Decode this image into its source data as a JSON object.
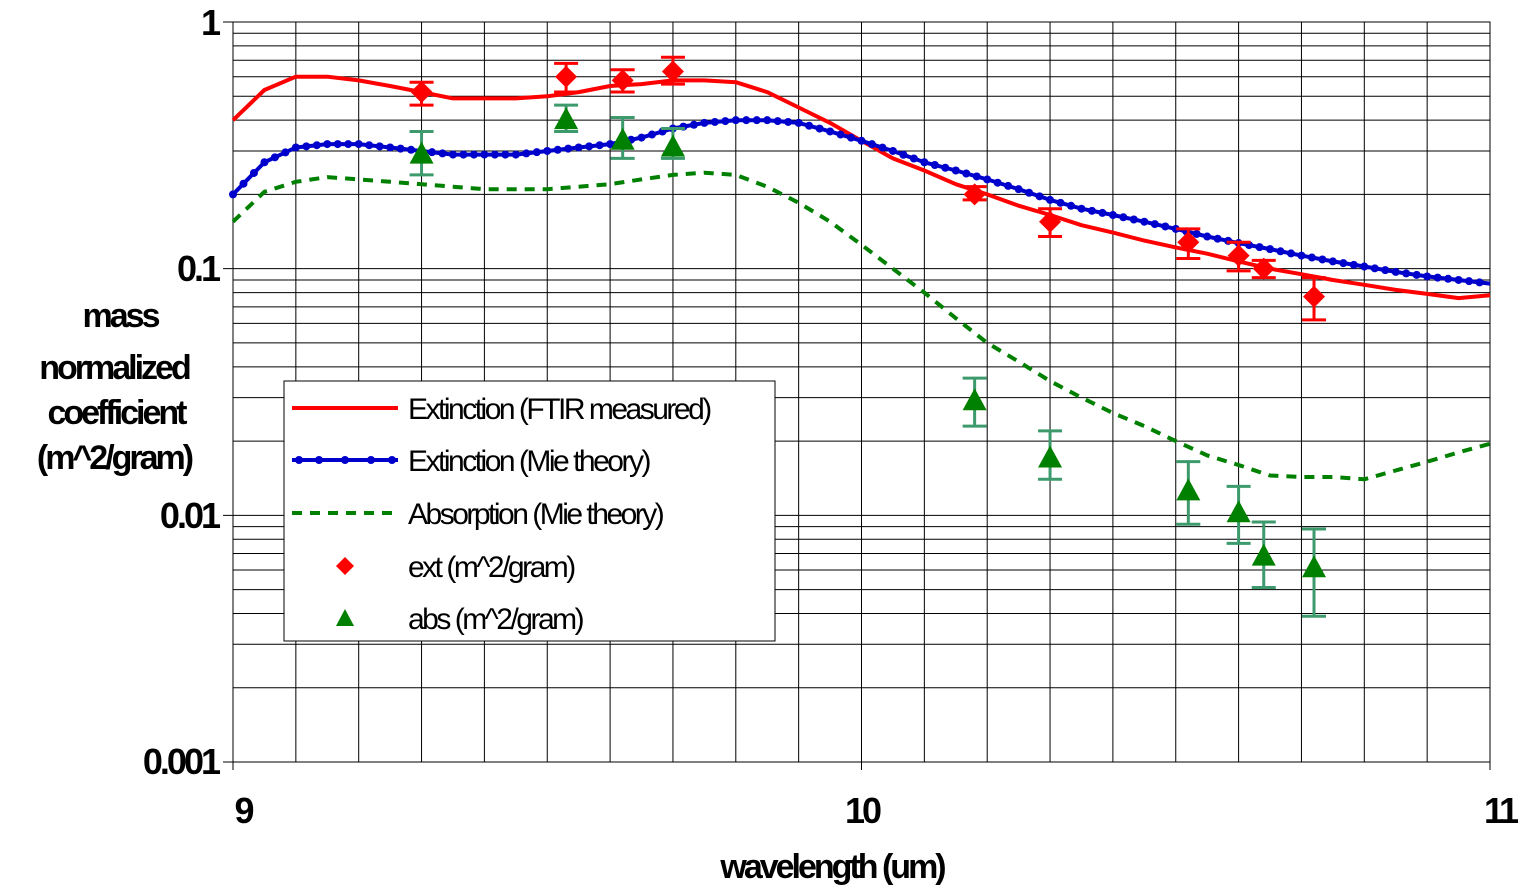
{
  "chart_data": {
    "type": "line",
    "xlabel": "wavelength (um)",
    "ylabel": [
      "mass",
      "normalized",
      "coefficient",
      "(m^2/gram)"
    ],
    "x_ticks": [
      "9",
      "10",
      "11"
    ],
    "y_ticks": [
      "1",
      "0.1",
      "0.01",
      "0.001"
    ],
    "xlim": [
      9,
      11
    ],
    "ylim": [
      0.001,
      1
    ],
    "y_scale": "log",
    "grid": true,
    "legend_position": "left-middle",
    "series": [
      {
        "name": "Extinction (FTIR measured)",
        "style": "solid",
        "color": "#ff0000",
        "x": [
          9.0,
          9.05,
          9.1,
          9.15,
          9.2,
          9.25,
          9.3,
          9.35,
          9.4,
          9.45,
          9.5,
          9.55,
          9.6,
          9.65,
          9.7,
          9.75,
          9.8,
          9.85,
          9.9,
          9.95,
          10.0,
          10.05,
          10.1,
          10.15,
          10.2,
          10.25,
          10.3,
          10.35,
          10.4,
          10.45,
          10.5,
          10.55,
          10.6,
          10.65,
          10.7,
          10.75,
          10.8,
          10.85,
          10.9,
          10.95,
          11.0
        ],
        "y": [
          0.4,
          0.53,
          0.6,
          0.6,
          0.58,
          0.55,
          0.52,
          0.49,
          0.49,
          0.49,
          0.5,
          0.52,
          0.55,
          0.56,
          0.58,
          0.58,
          0.57,
          0.52,
          0.45,
          0.39,
          0.33,
          0.28,
          0.25,
          0.22,
          0.2,
          0.18,
          0.165,
          0.15,
          0.14,
          0.13,
          0.122,
          0.115,
          0.107,
          0.1,
          0.095,
          0.09,
          0.086,
          0.082,
          0.079,
          0.076,
          0.078
        ]
      },
      {
        "name": "Extinction (Mie theory)",
        "style": "dotted-line",
        "color": "#0000cc",
        "x": [
          9.0,
          9.05,
          9.1,
          9.15,
          9.2,
          9.25,
          9.3,
          9.35,
          9.4,
          9.45,
          9.5,
          9.55,
          9.6,
          9.65,
          9.7,
          9.75,
          9.8,
          9.85,
          9.9,
          9.95,
          10.0,
          10.05,
          10.1,
          10.15,
          10.2,
          10.25,
          10.3,
          10.35,
          10.4,
          10.45,
          10.5,
          10.55,
          10.6,
          10.65,
          10.7,
          10.75,
          10.8,
          10.85,
          10.9,
          10.95,
          11.0
        ],
        "y": [
          0.2,
          0.27,
          0.31,
          0.32,
          0.32,
          0.31,
          0.3,
          0.29,
          0.29,
          0.29,
          0.3,
          0.31,
          0.32,
          0.34,
          0.37,
          0.39,
          0.4,
          0.4,
          0.39,
          0.36,
          0.33,
          0.3,
          0.27,
          0.25,
          0.23,
          0.21,
          0.19,
          0.175,
          0.165,
          0.155,
          0.145,
          0.135,
          0.127,
          0.12,
          0.113,
          0.107,
          0.102,
          0.097,
          0.093,
          0.09,
          0.087
        ]
      },
      {
        "name": "Absorption (Mie theory)",
        "style": "dashed",
        "color": "#008000",
        "x": [
          9.0,
          9.05,
          9.1,
          9.15,
          9.2,
          9.25,
          9.3,
          9.35,
          9.4,
          9.45,
          9.5,
          9.55,
          9.6,
          9.65,
          9.7,
          9.75,
          9.8,
          9.85,
          9.9,
          9.95,
          10.0,
          10.05,
          10.1,
          10.15,
          10.2,
          10.25,
          10.3,
          10.35,
          10.4,
          10.45,
          10.5,
          10.55,
          10.6,
          10.65,
          10.7,
          10.75,
          10.8,
          10.85,
          10.9,
          10.95,
          11.0
        ],
        "y": [
          0.155,
          0.205,
          0.225,
          0.235,
          0.23,
          0.225,
          0.22,
          0.215,
          0.21,
          0.21,
          0.21,
          0.215,
          0.22,
          0.23,
          0.24,
          0.245,
          0.24,
          0.215,
          0.185,
          0.155,
          0.125,
          0.1,
          0.08,
          0.063,
          0.05,
          0.042,
          0.035,
          0.03,
          0.026,
          0.023,
          0.02,
          0.0175,
          0.016,
          0.0145,
          0.0143,
          0.0143,
          0.014,
          0.0152,
          0.0165,
          0.018,
          0.0195
        ]
      },
      {
        "name": "ext (m^2/gram)",
        "style": "marker-diamond",
        "color": "#ff0000",
        "x": [
          9.3,
          9.53,
          9.62,
          9.7,
          10.18,
          10.3,
          10.52,
          10.6,
          10.64,
          10.72
        ],
        "y": [
          0.52,
          0.6,
          0.58,
          0.63,
          0.2,
          0.155,
          0.128,
          0.113,
          0.1,
          0.077
        ],
        "err_low": [
          0.46,
          0.52,
          0.52,
          0.56,
          0.19,
          0.135,
          0.11,
          0.098,
          0.092,
          0.062
        ],
        "err_high": [
          0.57,
          0.68,
          0.64,
          0.72,
          0.215,
          0.175,
          0.145,
          0.128,
          0.108,
          0.092
        ]
      },
      {
        "name": "abs (m^2/gram)",
        "style": "marker-triangle",
        "color": "#008000",
        "x": [
          9.3,
          9.53,
          9.62,
          9.7,
          10.18,
          10.3,
          10.52,
          10.6,
          10.64,
          10.72
        ],
        "y": [
          0.29,
          0.4,
          0.33,
          0.31,
          0.029,
          0.017,
          0.0125,
          0.0102,
          0.0068,
          0.0061
        ],
        "err_low": [
          0.24,
          0.36,
          0.28,
          0.28,
          0.023,
          0.014,
          0.0092,
          0.0077,
          0.0051,
          0.0039
        ],
        "err_high": [
          0.36,
          0.46,
          0.41,
          0.37,
          0.036,
          0.022,
          0.0165,
          0.0131,
          0.0094,
          0.0088
        ]
      }
    ]
  }
}
